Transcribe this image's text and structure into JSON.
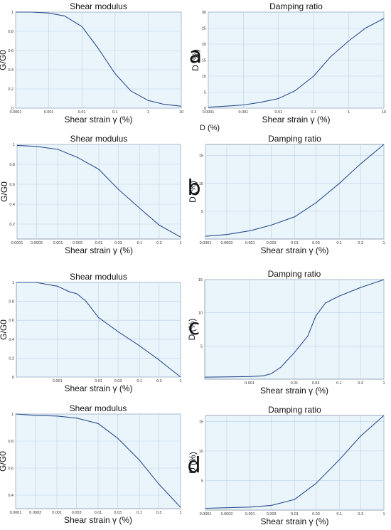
{
  "colors": {
    "plot_bg": "#eaf5fb",
    "grid": "#b9d0e4",
    "line": "#2c4d8e",
    "frame": "#7f8fa6"
  },
  "stray_label": "D (%)",
  "panel_letters": [
    "a",
    "b",
    "c",
    "d"
  ],
  "chart_data": [
    {
      "type": "line",
      "panel": "a",
      "title": "Shear modulus",
      "xlabel": "Shear strain γ (%)",
      "ylabel": "G/G0",
      "xscale": "log",
      "xlim": [
        0.0001,
        10
      ],
      "ylim": [
        0,
        1
      ],
      "xticks": [
        "0.0001",
        "0.001",
        "0.01",
        "0.1",
        "1",
        "10"
      ],
      "yticks": [
        "0",
        "0.2",
        "0.4",
        "0.6",
        "0.8",
        "1"
      ],
      "grid": true,
      "x": [
        0.0001,
        0.0003,
        0.001,
        0.003,
        0.01,
        0.03,
        0.1,
        0.3,
        1,
        3,
        10
      ],
      "y": [
        1.0,
        1.0,
        0.99,
        0.96,
        0.85,
        0.63,
        0.36,
        0.18,
        0.08,
        0.04,
        0.02
      ]
    },
    {
      "type": "line",
      "panel": "a",
      "title": "Damping ratio",
      "xlabel": "Shear strain γ (%)",
      "ylabel": "D (%)",
      "xscale": "log",
      "xlim": [
        0.0001,
        10
      ],
      "ylim": [
        0,
        30
      ],
      "xticks": [
        "0.0001",
        "0.001",
        "0.01",
        "0.1",
        "1",
        "10"
      ],
      "yticks": [
        "0",
        "5",
        "10",
        "15",
        "20",
        "25",
        "30"
      ],
      "grid": true,
      "x": [
        0.0001,
        0.0003,
        0.001,
        0.003,
        0.01,
        0.03,
        0.1,
        0.3,
        1,
        3,
        10
      ],
      "y": [
        0.3,
        0.6,
        1.0,
        1.8,
        3.0,
        5.5,
        10.0,
        16.0,
        21.0,
        25.0,
        28.0
      ]
    },
    {
      "type": "line",
      "panel": "b",
      "title": "Shear modulus",
      "xlabel": "Shear strain γ (%)",
      "ylabel": "G/G0",
      "xscale": "log",
      "xlim": [
        0.0001,
        1
      ],
      "ylim": [
        0.05,
        1
      ],
      "xticks": [
        "0.0001",
        "0.0003",
        "0.001",
        "0.003",
        "0.01",
        "0.03",
        "0.1",
        "0.3",
        "1"
      ],
      "yticks": [
        "0.2",
        "0.4",
        "0.6",
        "0.8",
        "1"
      ],
      "grid": true,
      "x": [
        0.0001,
        0.0003,
        0.001,
        0.003,
        0.01,
        0.03,
        0.1,
        0.3,
        1
      ],
      "y": [
        0.99,
        0.98,
        0.95,
        0.87,
        0.75,
        0.55,
        0.36,
        0.19,
        0.07
      ]
    },
    {
      "type": "line",
      "panel": "b",
      "title": "Damping ratio",
      "xlabel": "Shear strain γ (%)",
      "ylabel": "D (%)",
      "xscale": "log",
      "xlim": [
        0.0001,
        1
      ],
      "ylim": [
        0,
        17
      ],
      "xticks": [
        "0.0001",
        "0.0003",
        "0.001",
        "0.003",
        "0.01",
        "0.03",
        "0.1",
        "0.3",
        "1"
      ],
      "yticks": [
        "5",
        "10",
        "15"
      ],
      "grid": true,
      "x": [
        0.0001,
        0.0003,
        0.001,
        0.003,
        0.01,
        0.03,
        0.1,
        0.3,
        1
      ],
      "y": [
        0.5,
        0.8,
        1.5,
        2.5,
        4.0,
        6.5,
        10.0,
        13.5,
        17.0
      ]
    },
    {
      "type": "line",
      "panel": "c",
      "title": "Shear modulus",
      "xlabel": "Shear strain γ (%)",
      "ylabel": "G/G0",
      "xscale": "log",
      "xlim": [
        0.0001,
        1
      ],
      "ylim": [
        0,
        1
      ],
      "xticks": [
        "0.001",
        "0.01",
        "0.03",
        "0.1",
        "0.3",
        "1"
      ],
      "yticks": [
        "0",
        "0.2",
        "0.4",
        "0.6",
        "0.8",
        "1"
      ],
      "grid": true,
      "x": [
        0.0001,
        0.0003,
        0.001,
        0.002,
        0.003,
        0.005,
        0.01,
        0.03,
        0.1,
        0.3,
        1
      ],
      "y": [
        1.0,
        1.0,
        0.96,
        0.9,
        0.88,
        0.8,
        0.63,
        0.48,
        0.33,
        0.18,
        0.0
      ]
    },
    {
      "type": "line",
      "panel": "c",
      "title": "Damping ratio",
      "xlabel": "Shear strain γ (%)",
      "ylabel": "D (%)",
      "xscale": "log",
      "xlim": [
        0.0001,
        1
      ],
      "ylim": [
        0,
        15
      ],
      "xticks": [
        "0.001",
        "0.01",
        "0.03",
        "0.1",
        "0.3",
        "1"
      ],
      "yticks": [
        "5",
        "10",
        "15"
      ],
      "grid": true,
      "x": [
        0.0001,
        0.001,
        0.002,
        0.003,
        0.005,
        0.01,
        0.02,
        0.03,
        0.05,
        0.1,
        0.3,
        1
      ],
      "y": [
        0.3,
        0.4,
        0.5,
        0.8,
        1.8,
        4.0,
        6.5,
        9.5,
        11.5,
        12.5,
        13.8,
        15.0
      ]
    },
    {
      "type": "line",
      "panel": "d",
      "title": "Shear modulus",
      "xlabel": "Shear strain γ (%)",
      "ylabel": "G/G0",
      "xscale": "log",
      "xlim": [
        0.0001,
        1
      ],
      "ylim": [
        0.3,
        1
      ],
      "xticks": [
        "0.0001",
        "0.0003",
        "0.001",
        "0.003",
        "0.01",
        "0.03",
        "0.1",
        "0.3",
        "1"
      ],
      "yticks": [
        "0.4",
        "0.6",
        "0.8",
        "1"
      ],
      "grid": true,
      "x": [
        0.0001,
        0.0003,
        0.001,
        0.003,
        0.01,
        0.03,
        0.1,
        0.3,
        1
      ],
      "y": [
        1.0,
        0.99,
        0.985,
        0.97,
        0.93,
        0.82,
        0.66,
        0.48,
        0.31
      ]
    },
    {
      "type": "line",
      "panel": "d",
      "title": "Damping ratio",
      "xlabel": "Shear strain γ (%)",
      "ylabel": "D (%)",
      "xscale": "log",
      "xlim": [
        0.0001,
        1
      ],
      "ylim": [
        0,
        16
      ],
      "xticks": [
        "0.0001",
        "0.0003",
        "0.001",
        "0.003",
        "0.01",
        "0.03",
        "0.1",
        "0.3",
        "1"
      ],
      "yticks": [
        "5",
        "10",
        "15"
      ],
      "grid": true,
      "x": [
        0.0001,
        0.0003,
        0.001,
        0.003,
        0.01,
        0.03,
        0.1,
        0.3,
        1
      ],
      "y": [
        0.3,
        0.4,
        0.5,
        0.8,
        1.8,
        4.5,
        8.5,
        12.5,
        16.0
      ]
    }
  ]
}
